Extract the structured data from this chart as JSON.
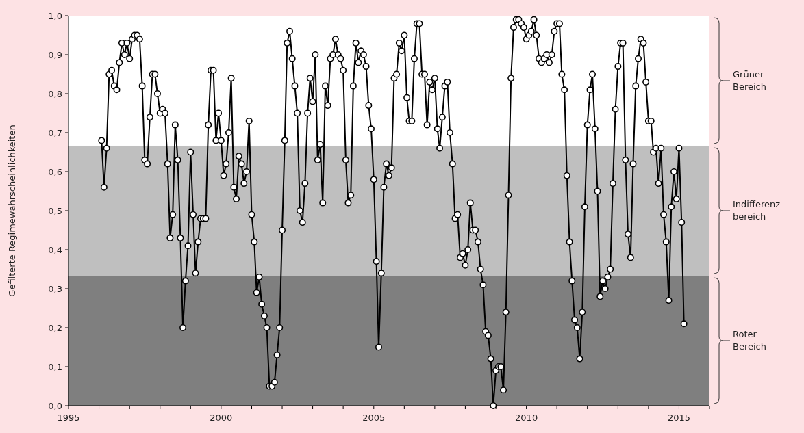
{
  "chart_data": {
    "type": "line",
    "ylabel": "Gefilterte Regimewahrscheinlichkeiten",
    "x": [
      "1996-02",
      "1996-03",
      "1996-04",
      "1996-05",
      "1996-06",
      "1996-07",
      "1996-08",
      "1996-09",
      "1996-10",
      "1996-11",
      "1996-12",
      "1997-01",
      "1997-02",
      "1997-03",
      "1997-04",
      "1997-05",
      "1997-06",
      "1997-07",
      "1997-08",
      "1997-09",
      "1997-10",
      "1997-11",
      "1997-12",
      "1998-01",
      "1998-02",
      "1998-03",
      "1998-04",
      "1998-05",
      "1998-06",
      "1998-07",
      "1998-08",
      "1998-09",
      "1998-10",
      "1998-11",
      "1998-12",
      "1999-01",
      "1999-02",
      "1999-03",
      "1999-04",
      "1999-05",
      "1999-06",
      "1999-07",
      "1999-08",
      "1999-09",
      "1999-10",
      "1999-11",
      "1999-12",
      "2000-01",
      "2000-02",
      "2000-03",
      "2000-04",
      "2000-05",
      "2000-06",
      "2000-07",
      "2000-08",
      "2000-09",
      "2000-10",
      "2000-11",
      "2000-12",
      "2001-01",
      "2001-02",
      "2001-03",
      "2001-04",
      "2001-05",
      "2001-06",
      "2001-07",
      "2001-08",
      "2001-09",
      "2001-10",
      "2001-11",
      "2001-12",
      "2002-01",
      "2002-02",
      "2002-03",
      "2002-04",
      "2002-05",
      "2002-06",
      "2002-07",
      "2002-08",
      "2002-09",
      "2002-10",
      "2002-11",
      "2002-12",
      "2003-01",
      "2003-02",
      "2003-03",
      "2003-04",
      "2003-05",
      "2003-06",
      "2003-07",
      "2003-08",
      "2003-09",
      "2003-10",
      "2003-11",
      "2003-12",
      "2004-01",
      "2004-02",
      "2004-03",
      "2004-04",
      "2004-05",
      "2004-06",
      "2004-07",
      "2004-08",
      "2004-09",
      "2004-10",
      "2004-11",
      "2004-12",
      "2005-01",
      "2005-02",
      "2005-03",
      "2005-04",
      "2005-05",
      "2005-06",
      "2005-07",
      "2005-08",
      "2005-09",
      "2005-10",
      "2005-11",
      "2005-12",
      "2006-01",
      "2006-02",
      "2006-03",
      "2006-04",
      "2006-05",
      "2006-06",
      "2006-07",
      "2006-08",
      "2006-09",
      "2006-10",
      "2006-11",
      "2006-12",
      "2007-01",
      "2007-02",
      "2007-03",
      "2007-04",
      "2007-05",
      "2007-06",
      "2007-07",
      "2007-08",
      "2007-09",
      "2007-10",
      "2007-11",
      "2007-12",
      "2008-01",
      "2008-02",
      "2008-03",
      "2008-04",
      "2008-05",
      "2008-06",
      "2008-07",
      "2008-08",
      "2008-09",
      "2008-10",
      "2008-11",
      "2008-12",
      "2009-01",
      "2009-02",
      "2009-03",
      "2009-04",
      "2009-05",
      "2009-06",
      "2009-07",
      "2009-08",
      "2009-09",
      "2009-10",
      "2009-11",
      "2009-12",
      "2010-01",
      "2010-02",
      "2010-03",
      "2010-04",
      "2010-05",
      "2010-06",
      "2010-07",
      "2010-08",
      "2010-09",
      "2010-10",
      "2010-11",
      "2010-12",
      "2011-01",
      "2011-02",
      "2011-03",
      "2011-04",
      "2011-05",
      "2011-06",
      "2011-07",
      "2011-08",
      "2011-09",
      "2011-10",
      "2011-11",
      "2011-12",
      "2012-01",
      "2012-02",
      "2012-03",
      "2012-04",
      "2012-05",
      "2012-06",
      "2012-07",
      "2012-08",
      "2012-09",
      "2012-10",
      "2012-11",
      "2012-12",
      "2013-01",
      "2013-02",
      "2013-03",
      "2013-04",
      "2013-05",
      "2013-06",
      "2013-07",
      "2013-08",
      "2013-09",
      "2013-10",
      "2013-11",
      "2013-12",
      "2014-01",
      "2014-02",
      "2014-03",
      "2014-04",
      "2014-05",
      "2014-06",
      "2014-07",
      "2014-08",
      "2014-09",
      "2014-10",
      "2014-11",
      "2014-12",
      "2015-01",
      "2015-02",
      "2015-03"
    ],
    "series": [
      {
        "color": "#000000",
        "values": [
          0.68,
          0.56,
          0.66,
          0.85,
          0.86,
          0.82,
          0.81,
          0.88,
          0.93,
          0.9,
          0.93,
          0.89,
          0.94,
          0.95,
          0.95,
          0.94,
          0.82,
          0.63,
          0.62,
          0.74,
          0.85,
          0.85,
          0.8,
          0.75,
          0.76,
          0.75,
          0.62,
          0.43,
          0.49,
          0.72,
          0.63,
          0.43,
          0.2,
          0.32,
          0.41,
          0.65,
          0.49,
          0.34,
          0.42,
          0.48,
          0.48,
          0.48,
          0.72,
          0.86,
          0.86,
          0.68,
          0.75,
          0.68,
          0.59,
          0.62,
          0.7,
          0.84,
          0.56,
          0.53,
          0.64,
          0.62,
          0.57,
          0.6,
          0.73,
          0.49,
          0.42,
          0.29,
          0.33,
          0.26,
          0.23,
          0.2,
          0.05,
          0.05,
          0.06,
          0.13,
          0.2,
          0.45,
          0.68,
          0.93,
          0.96,
          0.89,
          0.82,
          0.75,
          0.5,
          0.47,
          0.57,
          0.75,
          0.84,
          0.78,
          0.9,
          0.63,
          0.67,
          0.52,
          0.82,
          0.77,
          0.89,
          0.9,
          0.94,
          0.9,
          0.89,
          0.86,
          0.63,
          0.52,
          0.54,
          0.82,
          0.93,
          0.88,
          0.91,
          0.9,
          0.87,
          0.77,
          0.71,
          0.58,
          0.37,
          0.15,
          0.34,
          0.56,
          0.62,
          0.59,
          0.61,
          0.84,
          0.85,
          0.93,
          0.91,
          0.95,
          0.79,
          0.73,
          0.73,
          0.89,
          0.98,
          0.98,
          0.85,
          0.85,
          0.72,
          0.83,
          0.81,
          0.84,
          0.71,
          0.66,
          0.74,
          0.82,
          0.83,
          0.7,
          0.62,
          0.48,
          0.49,
          0.38,
          0.39,
          0.36,
          0.4,
          0.52,
          0.45,
          0.45,
          0.42,
          0.35,
          0.31,
          0.19,
          0.18,
          0.12,
          0.0,
          0.09,
          0.1,
          0.1,
          0.04,
          0.24,
          0.54,
          0.84,
          0.97,
          0.99,
          0.99,
          0.98,
          0.97,
          0.94,
          0.95,
          0.96,
          0.99,
          0.95,
          0.89,
          0.88,
          0.89,
          0.9,
          0.88,
          0.9,
          0.96,
          0.98,
          0.98,
          0.85,
          0.81,
          0.59,
          0.42,
          0.32,
          0.22,
          0.2,
          0.12,
          0.24,
          0.51,
          0.72,
          0.81,
          0.85,
          0.71,
          0.55,
          0.28,
          0.32,
          0.3,
          0.33,
          0.35,
          0.57,
          0.76,
          0.87,
          0.93,
          0.93,
          0.63,
          0.44,
          0.38,
          0.62,
          0.82,
          0.89,
          0.94,
          0.93,
          0.83,
          0.73,
          0.73,
          0.65,
          0.66,
          0.57,
          0.66,
          0.49,
          0.42,
          0.27,
          0.51,
          0.6,
          0.53,
          0.66,
          0.47,
          0.21
        ]
      }
    ],
    "xlim": [
      "1995-01",
      "2016-01"
    ],
    "xticks": [
      {
        "value": "1995-01",
        "label": "1995"
      },
      {
        "value": "1996-01",
        "label": null
      },
      {
        "value": "1997-01",
        "label": null
      },
      {
        "value": "1998-01",
        "label": null
      },
      {
        "value": "1999-01",
        "label": null
      },
      {
        "value": "2000-01",
        "label": "2000"
      },
      {
        "value": "2001-01",
        "label": null
      },
      {
        "value": "2002-01",
        "label": null
      },
      {
        "value": "2003-01",
        "label": null
      },
      {
        "value": "2004-01",
        "label": null
      },
      {
        "value": "2005-01",
        "label": "2005"
      },
      {
        "value": "2006-01",
        "label": null
      },
      {
        "value": "2007-01",
        "label": null
      },
      {
        "value": "2008-01",
        "label": null
      },
      {
        "value": "2009-01",
        "label": null
      },
      {
        "value": "2010-01",
        "label": "2010"
      },
      {
        "value": "2011-01",
        "label": null
      },
      {
        "value": "2012-01",
        "label": null
      },
      {
        "value": "2013-01",
        "label": null
      },
      {
        "value": "2014-01",
        "label": null
      },
      {
        "value": "2015-01",
        "label": "2015"
      },
      {
        "value": "2016-01",
        "label": null
      }
    ],
    "ylim": [
      0,
      1
    ],
    "yticks": [
      {
        "value": 0,
        "label": "0,0"
      },
      {
        "value": 0.1,
        "label": "0,1"
      },
      {
        "value": 0.2,
        "label": "0,2"
      },
      {
        "value": 0.3,
        "label": "0,3"
      },
      {
        "value": 0.4,
        "label": "0,4"
      },
      {
        "value": 0.5,
        "label": "0,5"
      },
      {
        "value": 0.6,
        "label": "0,6"
      },
      {
        "value": 0.7,
        "label": "0,7"
      },
      {
        "value": 0.8,
        "label": "0,8"
      },
      {
        "value": 0.9,
        "label": "0,9"
      },
      {
        "value": 1,
        "label": "1,0"
      }
    ],
    "bands": [
      {
        "axis": "y",
        "from": 0.6667,
        "to": 1,
        "label": "Grüner\nBereich",
        "color": "#ffffff"
      },
      {
        "axis": "y",
        "from": 0.3333,
        "to": 0.6667,
        "label": "Indifferenz-\nbereich",
        "color": "#bfbfbf"
      },
      {
        "axis": "y",
        "from": 0,
        "to": 0.3333,
        "label": "Roter\nBereich",
        "color": "#7f7f7f"
      }
    ],
    "grid": false,
    "marker": "circle",
    "line_style": "solid"
  }
}
